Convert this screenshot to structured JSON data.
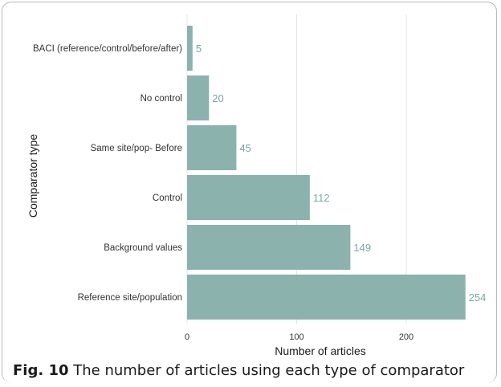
{
  "chart_data": {
    "type": "bar",
    "orientation": "horizontal",
    "categories": [
      "BACI (reference/control/before/after)",
      "No control",
      "Same site/pop- Before",
      "Control",
      "Background values",
      "Reference site/population"
    ],
    "values": [
      5,
      20,
      45,
      112,
      149,
      254
    ],
    "xlabel": "Number of articles",
    "ylabel": "Comparator type",
    "xlim": [
      0,
      254
    ],
    "xticks": [
      0,
      100,
      200
    ],
    "grid": "vertical",
    "bar_color": "#8cb2ae",
    "label_color": "#7aa7a3"
  },
  "caption": {
    "label": "Fig. 10",
    "text": "The number of articles using each type of comparator"
  }
}
